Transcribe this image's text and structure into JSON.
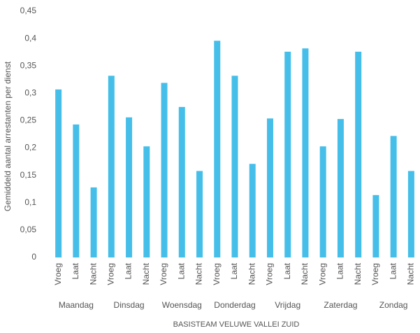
{
  "chart_data": {
    "type": "bar",
    "y_label": "Gemiddeld aantal arrestanten per dienst",
    "x_label": "BASISTEAM VELUWE VALLEI ZUID",
    "groups": [
      "Maandag",
      "Dinsdag",
      "Woensdag",
      "Donderdag",
      "Vrijdag",
      "Zaterdag",
      "Zondag"
    ],
    "categories": [
      "Vroeg",
      "Laat",
      "Nacht",
      "Vroeg",
      "Laat",
      "Nacht",
      "Vroeg",
      "Laat",
      "Nacht",
      "Vroeg",
      "Laat",
      "Nacht",
      "Vroeg",
      "Laat",
      "Nacht",
      "Vroeg",
      "Laat",
      "Nacht",
      "Vroeg",
      "Laat",
      "Nacht"
    ],
    "values": [
      0.307,
      0.243,
      0.128,
      0.332,
      0.256,
      0.203,
      0.319,
      0.275,
      0.158,
      0.396,
      0.332,
      0.171,
      0.254,
      0.376,
      0.382,
      0.203,
      0.253,
      0.376,
      0.114,
      0.222,
      0.158
    ],
    "color": "#45bfe9",
    "ylim": [
      0,
      0.45
    ],
    "yticks": [
      0,
      {
        "value": 0.05,
        "label": "0,05"
      },
      {
        "value": 0.1,
        "label": "0,1"
      },
      {
        "value": 0.15,
        "label": "0,15"
      },
      {
        "value": 0.2,
        "label": "0,2"
      },
      {
        "value": 0.25,
        "label": "0,25"
      },
      {
        "value": 0.3,
        "label": "0,3"
      },
      {
        "value": 0.35,
        "label": "0,35"
      },
      {
        "value": 0.4,
        "label": "0,4"
      },
      {
        "value": 0.45,
        "label": "0,45"
      }
    ],
    "grid": false
  }
}
